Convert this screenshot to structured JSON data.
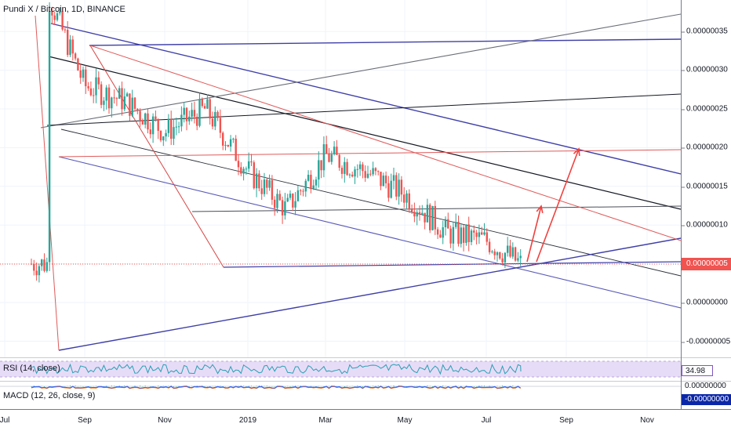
{
  "symbol_legend": "Pundi X / Bitcoin, 1D, BINANCE",
  "rsi_legend": "RSI (14, close)",
  "macd_legend": "MACD (12, 26, close, 9)",
  "price_axis": {
    "ticks": [
      "0.00000035",
      "0.00000030",
      "0.00000025",
      "0.00000020",
      "0.00000015",
      "0.00000010",
      "0.00000000",
      "-0.00000005"
    ],
    "current_price": "0.00000005",
    "current_price_color": "#f05350"
  },
  "rsi_axis": {
    "value": "34.98",
    "color": "#7e57c2"
  },
  "macd_axis": {
    "top": "0.00000000",
    "bottom": "-0.00000000",
    "bottom_color": "#0b27a8"
  },
  "time_axis": {
    "ticks": [
      "Jul",
      "Sep",
      "Nov",
      "2019",
      "Mar",
      "May",
      "Jul",
      "Sep",
      "Nov"
    ]
  },
  "colors": {
    "up": "#26a69a",
    "down": "#ef5350",
    "rsi_line": "#26a0b5",
    "rsi_band": "#e7dcf7",
    "macd_line": "#2962ff",
    "signal_line": "#ff6d00"
  },
  "chart_data": {
    "type": "candlestick",
    "title": "Pundi X / Bitcoin, 1D, BINANCE",
    "y_range": [
      -7e-08,
      4.3e-07
    ],
    "y_ticks": [
      3.5e-07,
      3e-07,
      2.5e-07,
      2e-07,
      1.5e-07,
      1e-07,
      5e-08,
      0,
      -5e-08
    ],
    "x_ticks": [
      "Jul",
      "Sep",
      "Nov",
      "2019",
      "Mar",
      "May",
      "Jul",
      "Sep",
      "Nov"
    ],
    "last_price": 5e-08,
    "close_series": {
      "period": "Jul 2018 - Jul 2019 (daily)",
      "points": [
        [
          "Aug 2018",
          2.8e-07
        ],
        [
          "Sep 2018",
          2.6e-07
        ],
        [
          "Oct 2018",
          2.2e-07
        ],
        [
          "Nov 2018",
          2.5e-07
        ],
        [
          "Dec 2018",
          1.7e-07
        ],
        [
          "Jan 2019",
          1.2e-07
        ],
        [
          "Feb 2019",
          1.9e-07
        ],
        [
          "Mar 2019",
          1.7e-07
        ],
        [
          "Apr 2019",
          1.4e-07
        ],
        [
          "May 2019",
          9e-08
        ],
        [
          "Jun 2019",
          8e-08
        ],
        [
          "Jul 2019",
          5e-08
        ]
      ]
    },
    "annotations": [
      "descending channel trendlines",
      "two projected up-arrows toward 0.00000012 and 0.00000019"
    ],
    "indicators": {
      "RSI": 34.98,
      "MACD": 0
    },
    "grid": true,
    "legend": "top-left"
  }
}
